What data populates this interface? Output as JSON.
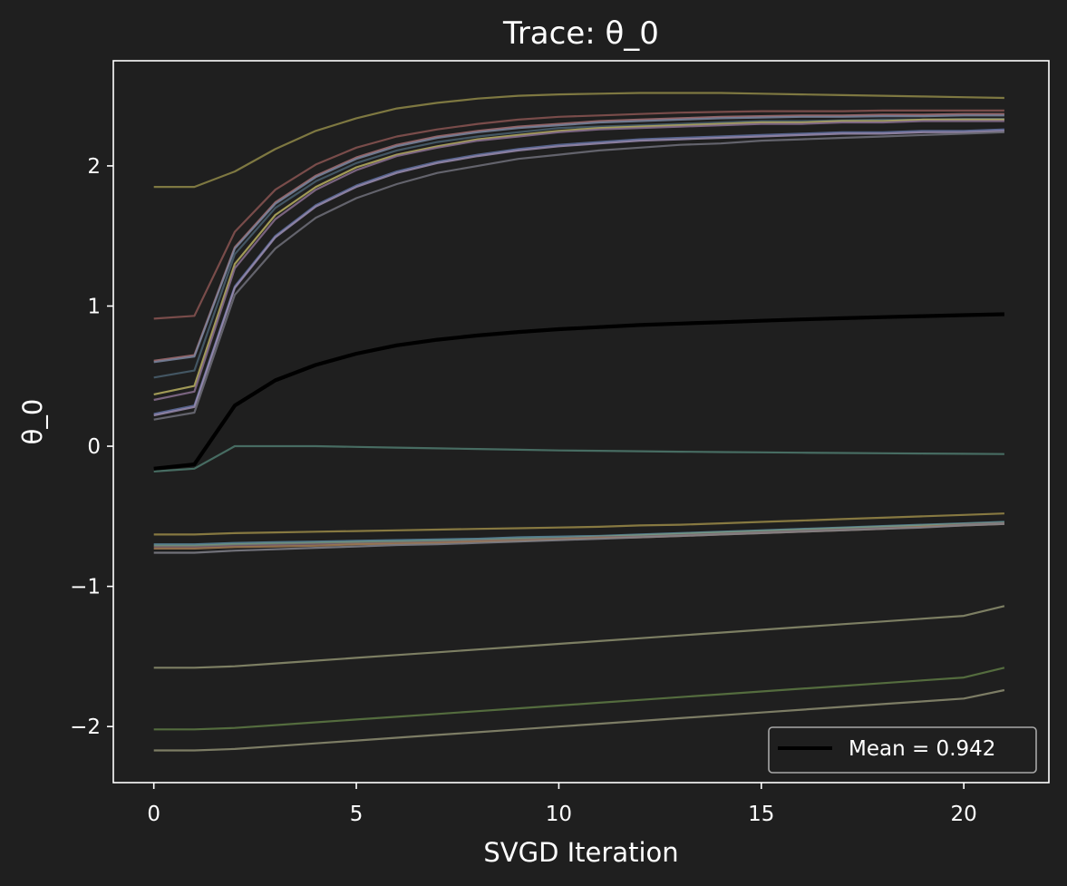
{
  "chart_data": {
    "type": "line",
    "title": "Trace: θ_0",
    "xlabel": "SVGD Iteration",
    "ylabel": "θ_0",
    "xlim": [
      -1,
      22.1
    ],
    "ylim": [
      -2.4,
      2.75
    ],
    "xticks": [
      0,
      5,
      10,
      15,
      20
    ],
    "yticks": [
      -2,
      -1,
      0,
      1,
      2
    ],
    "ytick_labels": [
      "−2",
      "−1",
      "0",
      "1",
      "2"
    ],
    "grid": false,
    "legend": {
      "placement": "lower-right",
      "entries": [
        {
          "label": "Mean = 0.942",
          "color": "#000000"
        }
      ]
    },
    "x": [
      0,
      1,
      2,
      3,
      4,
      5,
      6,
      7,
      8,
      9,
      10,
      11,
      12,
      13,
      14,
      15,
      16,
      17,
      18,
      19,
      20,
      21
    ],
    "mean": {
      "color": "#000000",
      "values": [
        -0.16,
        -0.13,
        0.29,
        0.47,
        0.58,
        0.66,
        0.72,
        0.76,
        0.79,
        0.815,
        0.835,
        0.85,
        0.865,
        0.875,
        0.885,
        0.895,
        0.905,
        0.913,
        0.921,
        0.928,
        0.935,
        0.942
      ]
    },
    "particles": [
      {
        "color": "#8f8848",
        "values": [
          1.85,
          1.85,
          1.96,
          2.12,
          2.25,
          2.34,
          2.41,
          2.45,
          2.48,
          2.5,
          2.51,
          2.515,
          2.52,
          2.52,
          2.52,
          2.515,
          2.51,
          2.505,
          2.5,
          2.495,
          2.49,
          2.485
        ]
      },
      {
        "color": "#8a5552",
        "values": [
          0.91,
          0.93,
          1.53,
          1.83,
          2.01,
          2.13,
          2.21,
          2.26,
          2.3,
          2.33,
          2.35,
          2.36,
          2.37,
          2.38,
          2.385,
          2.39,
          2.39,
          2.39,
          2.395,
          2.395,
          2.395,
          2.395
        ]
      },
      {
        "color": "#a56e72",
        "values": [
          0.61,
          0.65,
          1.42,
          1.74,
          1.93,
          2.06,
          2.15,
          2.21,
          2.25,
          2.28,
          2.3,
          2.32,
          2.33,
          2.34,
          2.35,
          2.355,
          2.36,
          2.36,
          2.365,
          2.365,
          2.37,
          2.37
        ]
      },
      {
        "color": "#7a86a0",
        "values": [
          0.6,
          0.64,
          1.41,
          1.73,
          1.92,
          2.05,
          2.14,
          2.2,
          2.24,
          2.27,
          2.29,
          2.31,
          2.32,
          2.33,
          2.34,
          2.345,
          2.35,
          2.35,
          2.355,
          2.355,
          2.36,
          2.36
        ]
      },
      {
        "color": "#4a6070",
        "values": [
          0.49,
          0.54,
          1.37,
          1.7,
          1.89,
          2.02,
          2.11,
          2.17,
          2.21,
          2.24,
          2.27,
          2.28,
          2.29,
          2.3,
          2.31,
          2.32,
          2.32,
          2.325,
          2.33,
          2.33,
          2.335,
          2.335
        ]
      },
      {
        "color": "#b8b060",
        "values": [
          0.37,
          0.43,
          1.3,
          1.65,
          1.85,
          1.99,
          2.08,
          2.14,
          2.19,
          2.22,
          2.25,
          2.27,
          2.28,
          2.29,
          2.3,
          2.31,
          2.31,
          2.32,
          2.32,
          2.33,
          2.33,
          2.33
        ]
      },
      {
        "color": "#8a7090",
        "values": [
          0.33,
          0.39,
          1.27,
          1.62,
          1.83,
          1.97,
          2.07,
          2.13,
          2.18,
          2.21,
          2.24,
          2.26,
          2.27,
          2.28,
          2.29,
          2.3,
          2.3,
          2.31,
          2.31,
          2.32,
          2.32,
          2.32
        ]
      },
      {
        "color": "#6070a0",
        "values": [
          0.23,
          0.29,
          1.14,
          1.5,
          1.72,
          1.86,
          1.96,
          2.03,
          2.08,
          2.12,
          2.15,
          2.17,
          2.19,
          2.2,
          2.21,
          2.22,
          2.23,
          2.24,
          2.24,
          2.25,
          2.25,
          2.26
        ]
      },
      {
        "color": "#9a8cb0",
        "values": [
          0.22,
          0.28,
          1.13,
          1.49,
          1.71,
          1.85,
          1.95,
          2.02,
          2.07,
          2.11,
          2.14,
          2.16,
          2.18,
          2.19,
          2.2,
          2.21,
          2.22,
          2.23,
          2.23,
          2.24,
          2.24,
          2.25
        ]
      },
      {
        "color": "#70707a",
        "values": [
          0.19,
          0.24,
          1.08,
          1.41,
          1.63,
          1.77,
          1.87,
          1.95,
          2.0,
          2.05,
          2.08,
          2.11,
          2.13,
          2.15,
          2.16,
          2.18,
          2.19,
          2.2,
          2.21,
          2.22,
          2.23,
          2.24
        ]
      },
      {
        "color": "#4f7a6e",
        "values": [
          -0.18,
          -0.16,
          0.0,
          0.0,
          0.0,
          -0.005,
          -0.01,
          -0.015,
          -0.02,
          -0.025,
          -0.03,
          -0.033,
          -0.036,
          -0.039,
          -0.042,
          -0.044,
          -0.046,
          -0.048,
          -0.05,
          -0.052,
          -0.054,
          -0.056
        ]
      },
      {
        "color": "#9a8a48",
        "values": [
          -0.63,
          -0.63,
          -0.62,
          -0.615,
          -0.61,
          -0.605,
          -0.6,
          -0.595,
          -0.59,
          -0.585,
          -0.58,
          -0.575,
          -0.565,
          -0.56,
          -0.55,
          -0.54,
          -0.53,
          -0.52,
          -0.51,
          -0.5,
          -0.49,
          -0.48
        ]
      },
      {
        "color": "#5a8aa0",
        "values": [
          -0.7,
          -0.7,
          -0.69,
          -0.685,
          -0.68,
          -0.675,
          -0.67,
          -0.665,
          -0.66,
          -0.65,
          -0.645,
          -0.64,
          -0.63,
          -0.62,
          -0.61,
          -0.6,
          -0.59,
          -0.58,
          -0.57,
          -0.56,
          -0.55,
          -0.54
        ]
      },
      {
        "color": "#7a9a80",
        "values": [
          -0.71,
          -0.71,
          -0.7,
          -0.695,
          -0.69,
          -0.685,
          -0.68,
          -0.675,
          -0.67,
          -0.66,
          -0.655,
          -0.645,
          -0.635,
          -0.625,
          -0.615,
          -0.605,
          -0.595,
          -0.585,
          -0.575,
          -0.565,
          -0.555,
          -0.545
        ]
      },
      {
        "color": "#7a6070",
        "values": [
          -0.72,
          -0.72,
          -0.71,
          -0.705,
          -0.7,
          -0.695,
          -0.69,
          -0.685,
          -0.675,
          -0.67,
          -0.66,
          -0.65,
          -0.645,
          -0.635,
          -0.625,
          -0.615,
          -0.605,
          -0.595,
          -0.585,
          -0.575,
          -0.56,
          -0.55
        ]
      },
      {
        "color": "#a07a50",
        "values": [
          -0.73,
          -0.73,
          -0.72,
          -0.715,
          -0.71,
          -0.7,
          -0.695,
          -0.69,
          -0.68,
          -0.675,
          -0.665,
          -0.655,
          -0.65,
          -0.64,
          -0.63,
          -0.62,
          -0.61,
          -0.6,
          -0.59,
          -0.575,
          -0.565,
          -0.555
        ]
      },
      {
        "color": "#80808a",
        "values": [
          -0.76,
          -0.76,
          -0.745,
          -0.735,
          -0.725,
          -0.715,
          -0.705,
          -0.7,
          -0.69,
          -0.68,
          -0.67,
          -0.66,
          -0.65,
          -0.64,
          -0.63,
          -0.62,
          -0.61,
          -0.6,
          -0.59,
          -0.58,
          -0.565,
          -0.555
        ]
      },
      {
        "color": "#8e9070",
        "values": [
          -1.58,
          -1.58,
          -1.57,
          -1.55,
          -1.53,
          -1.51,
          -1.49,
          -1.47,
          -1.45,
          -1.43,
          -1.41,
          -1.39,
          -1.37,
          -1.35,
          -1.33,
          -1.31,
          -1.29,
          -1.27,
          -1.25,
          -1.23,
          -1.21,
          -1.14
        ]
      },
      {
        "color": "#5e7a44",
        "values": [
          -2.02,
          -2.02,
          -2.01,
          -1.99,
          -1.97,
          -1.95,
          -1.93,
          -1.91,
          -1.89,
          -1.87,
          -1.85,
          -1.83,
          -1.81,
          -1.79,
          -1.77,
          -1.75,
          -1.73,
          -1.71,
          -1.69,
          -1.67,
          -1.65,
          -1.58
        ]
      },
      {
        "color": "#8e8e72",
        "values": [
          -2.17,
          -2.17,
          -2.16,
          -2.14,
          -2.12,
          -2.1,
          -2.08,
          -2.06,
          -2.04,
          -2.02,
          -2.0,
          -1.98,
          -1.96,
          -1.94,
          -1.92,
          -1.9,
          -1.88,
          -1.86,
          -1.84,
          -1.82,
          -1.8,
          -1.74
        ]
      }
    ]
  }
}
